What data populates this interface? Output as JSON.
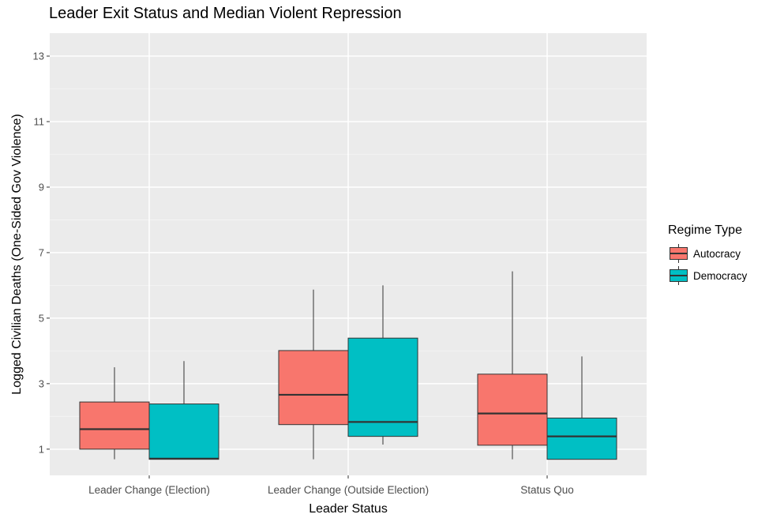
{
  "chart_data": {
    "type": "boxplot",
    "title": "Leader Exit Status and Median Violent Repression",
    "xlabel": "Leader Status",
    "ylabel": "Logged Civilian Deaths (One-Sided Gov Violence)",
    "categories": [
      "Leader Change (Election)",
      "Leader Change (Outside Election)",
      "Status Quo"
    ],
    "ylim": [
      0.2,
      13.7
    ],
    "y_ticks": [
      1,
      3,
      5,
      7,
      9,
      11,
      13
    ],
    "grid": true,
    "legend": {
      "title": "Regime Type",
      "position": "right"
    },
    "series": [
      {
        "name": "Autocracy",
        "color": "#F8766D",
        "boxes": [
          {
            "whisker_low": 0.69,
            "q1": 1.0,
            "median": 1.61,
            "q3": 2.44,
            "whisker_high": 3.5
          },
          {
            "whisker_low": 0.69,
            "q1": 1.75,
            "median": 2.66,
            "q3": 4.01,
            "whisker_high": 5.87
          },
          {
            "whisker_low": 0.69,
            "q1": 1.12,
            "median": 2.09,
            "q3": 3.29,
            "whisker_high": 6.43
          }
        ]
      },
      {
        "name": "Democracy",
        "color": "#00BFC4",
        "boxes": [
          {
            "whisker_low": 0.69,
            "q1": 0.69,
            "median": 0.71,
            "q3": 2.38,
            "whisker_high": 3.69
          },
          {
            "whisker_low": 1.14,
            "q1": 1.39,
            "median": 1.83,
            "q3": 4.39,
            "whisker_high": 6.0
          },
          {
            "whisker_low": 0.69,
            "q1": 0.69,
            "median": 1.39,
            "q3": 1.95,
            "whisker_high": 3.83
          }
        ]
      }
    ]
  }
}
